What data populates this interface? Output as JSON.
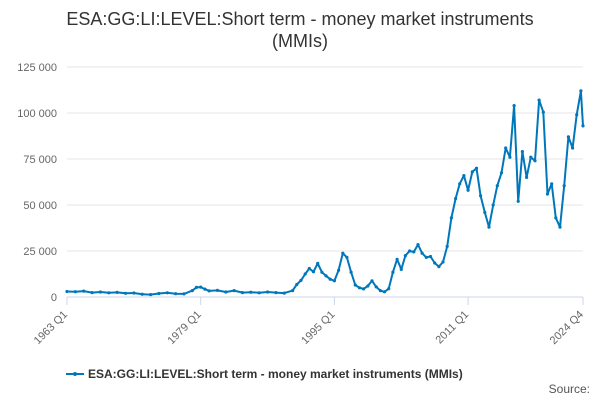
{
  "chart_data": {
    "type": "line",
    "title_lines": [
      "ESA:GG:LI:LEVEL:Short term - money market instruments",
      "(MMIs)"
    ],
    "xlabel": "",
    "ylabel": "",
    "ylim": [
      0,
      125000
    ],
    "yticks": [
      0,
      25000,
      50000,
      75000,
      100000,
      125000
    ],
    "ytick_labels": [
      "0",
      "25 000",
      "50 000",
      "75 000",
      "100 000",
      "125 000"
    ],
    "xlim": [
      "1963 Q1",
      "2024 Q4"
    ],
    "xticks": [
      "1963 Q1",
      "1979 Q1",
      "1995 Q1",
      "2011 Q1",
      "2024 Q4"
    ],
    "grid": "horizontal",
    "legend_position": "bottom",
    "series": [
      {
        "name": "ESA:GG:LI:LEVEL:Short term - money market instruments (MMIs)",
        "color": "#0077bb",
        "points": [
          [
            "1963 Q1",
            3000
          ],
          [
            "1964 Q1",
            2900
          ],
          [
            "1965 Q1",
            3200
          ],
          [
            "1966 Q1",
            2400
          ],
          [
            "1967 Q1",
            2700
          ],
          [
            "1968 Q1",
            2300
          ],
          [
            "1969 Q1",
            2500
          ],
          [
            "1970 Q1",
            2000
          ],
          [
            "1971 Q1",
            2200
          ],
          [
            "1972 Q1",
            1500
          ],
          [
            "1973 Q1",
            1300
          ],
          [
            "1974 Q1",
            1900
          ],
          [
            "1975 Q1",
            2300
          ],
          [
            "1976 Q1",
            1800
          ],
          [
            "1977 Q1",
            1700
          ],
          [
            "1978 Q1",
            3500
          ],
          [
            "1978 Q3",
            5200
          ],
          [
            "1979 Q1",
            5400
          ],
          [
            "1979 Q3",
            4300
          ],
          [
            "1980 Q1",
            3300
          ],
          [
            "1981 Q1",
            3600
          ],
          [
            "1982 Q1",
            2700
          ],
          [
            "1983 Q1",
            3500
          ],
          [
            "1984 Q1",
            2400
          ],
          [
            "1985 Q1",
            2600
          ],
          [
            "1986 Q1",
            2300
          ],
          [
            "1987 Q1",
            2700
          ],
          [
            "1988 Q1",
            2400
          ],
          [
            "1989 Q1",
            2100
          ],
          [
            "1990 Q1",
            3500
          ],
          [
            "1990 Q3",
            6800
          ],
          [
            "1991 Q1",
            9000
          ],
          [
            "1991 Q3",
            12500
          ],
          [
            "1992 Q1",
            15500
          ],
          [
            "1992 Q3",
            13700
          ],
          [
            "1993 Q1",
            18300
          ],
          [
            "1993 Q3",
            13500
          ],
          [
            "1994 Q1",
            11500
          ],
          [
            "1994 Q3",
            9700
          ],
          [
            "1995 Q1",
            8800
          ],
          [
            "1995 Q3",
            14500
          ],
          [
            "1996 Q1",
            23800
          ],
          [
            "1996 Q3",
            21500
          ],
          [
            "1997 Q1",
            13500
          ],
          [
            "1997 Q3",
            6500
          ],
          [
            "1998 Q1",
            5000
          ],
          [
            "1998 Q3",
            4400
          ],
          [
            "1999 Q1",
            6000
          ],
          [
            "1999 Q3",
            8800
          ],
          [
            "2000 Q1",
            5500
          ],
          [
            "2000 Q3",
            3500
          ],
          [
            "2001 Q1",
            2800
          ],
          [
            "2001 Q3",
            4500
          ],
          [
            "2002 Q1",
            13500
          ],
          [
            "2002 Q3",
            20500
          ],
          [
            "2003 Q1",
            15000
          ],
          [
            "2003 Q3",
            22500
          ],
          [
            "2004 Q1",
            25000
          ],
          [
            "2004 Q3",
            24500
          ],
          [
            "2005 Q1",
            28500
          ],
          [
            "2005 Q3",
            23800
          ],
          [
            "2006 Q1",
            21500
          ],
          [
            "2006 Q3",
            22000
          ],
          [
            "2007 Q1",
            18500
          ],
          [
            "2007 Q3",
            16500
          ],
          [
            "2008 Q1",
            19000
          ],
          [
            "2008 Q3",
            27500
          ],
          [
            "2009 Q1",
            43000
          ],
          [
            "2009 Q3",
            53500
          ],
          [
            "2010 Q1",
            61500
          ],
          [
            "2010 Q3",
            66000
          ],
          [
            "2011 Q1",
            58000
          ],
          [
            "2011 Q3",
            68000
          ],
          [
            "2012 Q1",
            70000
          ],
          [
            "2012 Q3",
            55000
          ],
          [
            "2013 Q1",
            46000
          ],
          [
            "2013 Q3",
            38000
          ],
          [
            "2014 Q1",
            50000
          ],
          [
            "2014 Q3",
            60500
          ],
          [
            "2015 Q1",
            67500
          ],
          [
            "2015 Q3",
            81000
          ],
          [
            "2016 Q1",
            76000
          ],
          [
            "2016 Q3",
            104000
          ],
          [
            "2017 Q1",
            52000
          ],
          [
            "2017 Q3",
            79000
          ],
          [
            "2018 Q1",
            65000
          ],
          [
            "2018 Q3",
            76000
          ],
          [
            "2019 Q1",
            74000
          ],
          [
            "2019 Q3",
            107000
          ],
          [
            "2020 Q1",
            100500
          ],
          [
            "2020 Q3",
            56000
          ],
          [
            "2021 Q1",
            61500
          ],
          [
            "2021 Q3",
            43000
          ],
          [
            "2022 Q1",
            38000
          ],
          [
            "2022 Q3",
            60500
          ],
          [
            "2023 Q1",
            87000
          ],
          [
            "2023 Q3",
            81000
          ],
          [
            "2024 Q1",
            99000
          ],
          [
            "2024 Q3",
            112000
          ],
          [
            "2024 Q4",
            93000
          ]
        ]
      }
    ]
  },
  "footer": {
    "source_label": "Source:"
  }
}
